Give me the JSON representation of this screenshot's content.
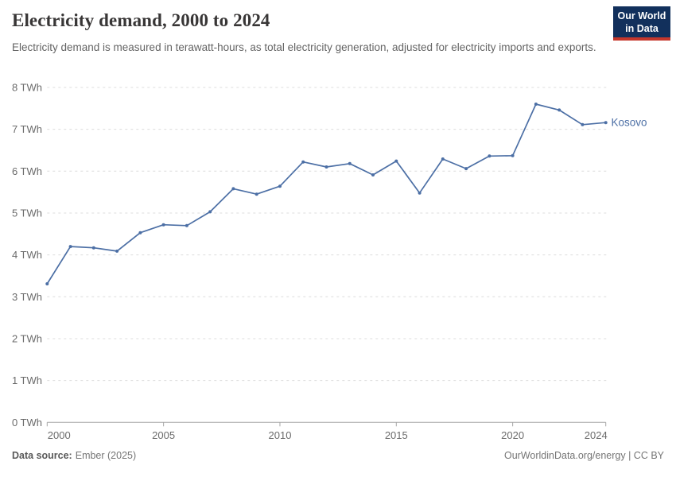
{
  "header": {
    "title": "Electricity demand, 2000 to 2024",
    "subtitle": "Electricity demand is measured in terawatt-hours, as total electricity generation, adjusted for electricity imports and exports.",
    "logo": {
      "line1": "Our World",
      "line2": "in Data",
      "bg_color": "#12305c",
      "accent_color": "#c5372c"
    }
  },
  "chart_data": {
    "type": "line",
    "title": "Electricity demand, 2000 to 2024",
    "unit": "TWh",
    "xlim": [
      2000,
      2024
    ],
    "ylim": [
      0,
      8
    ],
    "x_ticks": [
      2000,
      2005,
      2010,
      2015,
      2020,
      2024
    ],
    "y_ticks": [
      0,
      1,
      2,
      3,
      4,
      5,
      6,
      7,
      8
    ],
    "y_tick_suffix": " TWh",
    "grid": "horizontal dashed",
    "legend_position": "end-of-line label",
    "series": [
      {
        "name": "Kosovo",
        "color": "#4c6fa5",
        "x": [
          2000,
          2001,
          2002,
          2003,
          2004,
          2005,
          2006,
          2007,
          2008,
          2009,
          2010,
          2011,
          2012,
          2013,
          2014,
          2015,
          2016,
          2017,
          2018,
          2019,
          2020,
          2021,
          2022,
          2023,
          2024
        ],
        "values": [
          3.31,
          4.2,
          4.17,
          4.09,
          4.53,
          4.72,
          4.7,
          5.03,
          5.58,
          5.45,
          5.64,
          6.22,
          6.1,
          6.18,
          5.91,
          6.24,
          5.48,
          6.29,
          6.06,
          6.36,
          6.37,
          7.6,
          7.46,
          7.11,
          7.16
        ]
      }
    ],
    "style": {
      "grid_color": "#dcdcdc",
      "axis_color": "#a5a5a5",
      "tick_label_color": "#6b6b6b"
    }
  },
  "footer": {
    "source_label": "Data source:",
    "source_value": "Ember (2025)",
    "credit": "OurWorldinData.org/energy | CC BY"
  }
}
